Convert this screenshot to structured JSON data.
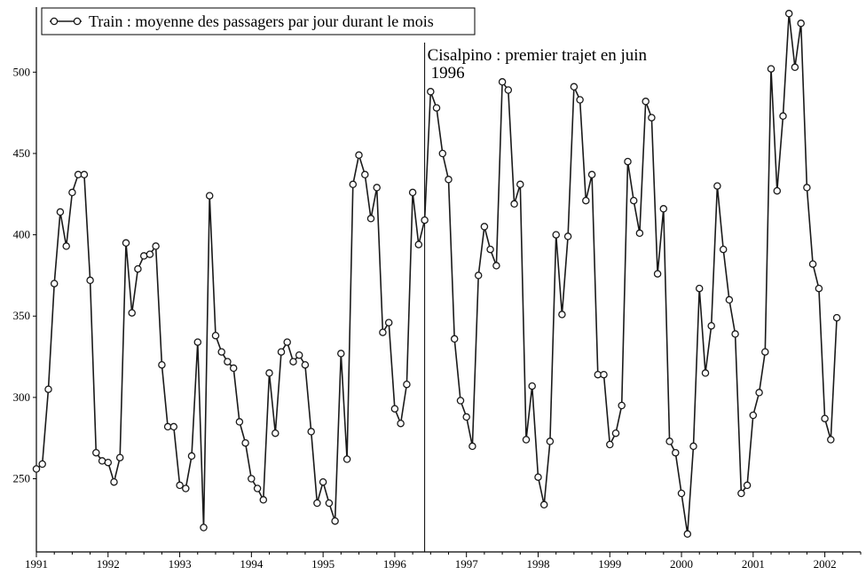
{
  "chart_data": {
    "type": "line",
    "title": "",
    "xlabel": "",
    "ylabel": "",
    "x_start": 1991.0,
    "x_step": 0.08333333,
    "xlim": [
      1991,
      2002.5
    ],
    "ylim": [
      205,
      540
    ],
    "x_ticks": [
      1991,
      1992,
      1993,
      1994,
      1995,
      1996,
      1997,
      1998,
      1999,
      2000,
      2001,
      2002
    ],
    "y_ticks": [
      250,
      300,
      350,
      400,
      450,
      500
    ],
    "legend_position": "top-left",
    "grid": false,
    "series": [
      {
        "name": "Train : moyenne des passagers par jour durant le mois",
        "color": "#1a1a1a",
        "marker": "open-circle",
        "values": [
          256,
          259,
          305,
          370,
          414,
          393,
          426,
          437,
          437,
          372,
          266,
          261,
          260,
          248,
          263,
          395,
          352,
          379,
          387,
          388,
          393,
          320,
          282,
          282,
          246,
          244,
          264,
          334,
          220,
          424,
          338,
          328,
          322,
          318,
          285,
          272,
          250,
          244,
          237,
          315,
          278,
          328,
          334,
          322,
          326,
          320,
          279,
          235,
          248,
          235,
          224,
          327,
          262,
          431,
          449,
          437,
          410,
          429,
          340,
          346,
          293,
          284,
          308,
          426,
          394,
          409,
          488,
          478,
          450,
          434,
          336,
          298,
          288,
          270,
          375,
          405,
          391,
          381,
          494,
          489,
          419,
          431,
          274,
          307,
          251,
          234,
          273,
          400,
          351,
          399,
          491,
          483,
          421,
          437,
          314,
          314,
          271,
          278,
          295,
          445,
          421,
          401,
          482,
          472,
          376,
          416,
          273,
          266,
          241,
          216,
          270,
          367,
          315,
          344,
          430,
          391,
          360,
          339,
          241,
          246,
          289,
          303,
          328,
          502,
          427,
          473,
          536,
          503,
          530,
          429,
          382,
          367,
          287,
          274,
          349
        ]
      }
    ],
    "annotations": [
      {
        "x": 1996.417,
        "lines": [
          "Cisalpino : premier trajet en juin",
          "1996"
        ]
      }
    ]
  }
}
